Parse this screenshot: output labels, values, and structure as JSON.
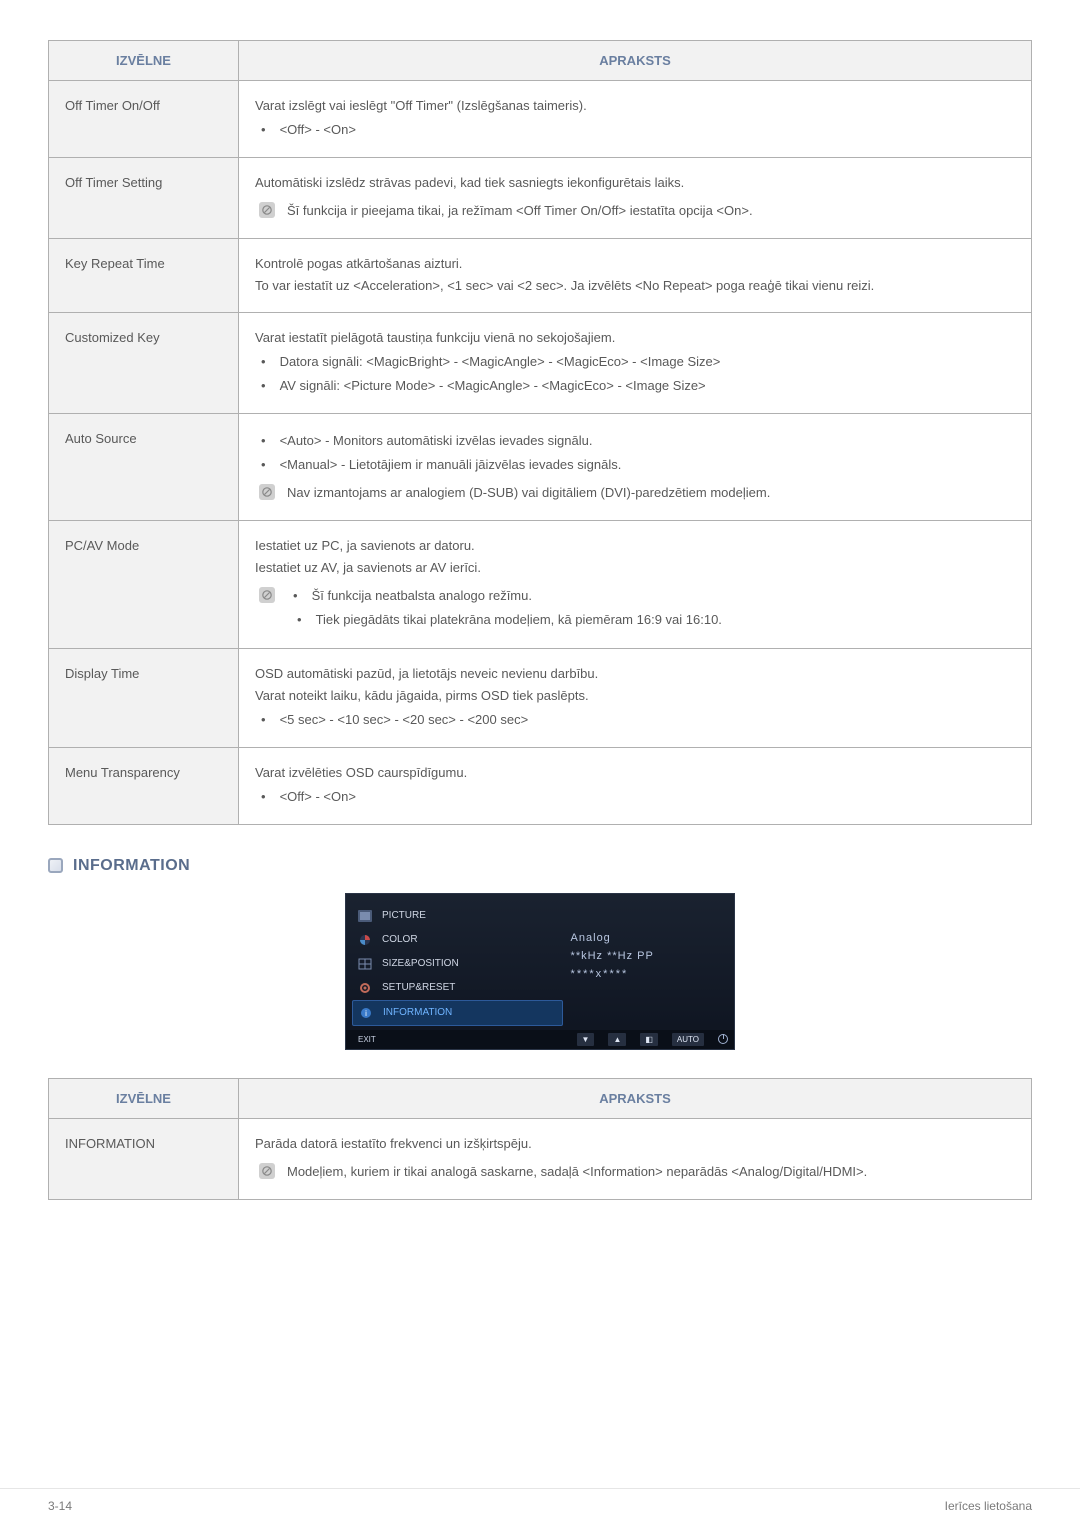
{
  "table1": {
    "headers": {
      "menu": "IZVĒLNE",
      "desc": "APRAKSTS"
    },
    "header_color": "#6a7fa0",
    "header_bg": "#f2f2f2",
    "border_color": "#b0b0b0",
    "text_color": "#595959",
    "rows": [
      {
        "menu": "Off Timer On/Off",
        "desc_lines": [
          {
            "kind": "plain",
            "text": "Varat izslēgt vai ieslēgt \"Off Timer\" (Izslēgšanas taimeris)."
          },
          {
            "kind": "bullet",
            "text": "<Off> - <On>"
          }
        ]
      },
      {
        "menu": "Off Timer Setting",
        "desc_lines": [
          {
            "kind": "plain",
            "text": "Automātiski izslēdz strāvas padevi, kad tiek sasniegts iekonfigurētais laiks."
          },
          {
            "kind": "note",
            "text": "Šī funkcija ir pieejama tikai, ja režīmam <Off Timer On/Off> iestatīta opcija <On>."
          }
        ]
      },
      {
        "menu": "Key Repeat Time",
        "desc_lines": [
          {
            "kind": "plain",
            "text": "Kontrolē pogas atkārtošanas aizturi."
          },
          {
            "kind": "plain",
            "text": "To var iestatīt uz <Acceleration>, <1 sec> vai <2 sec>. Ja izvēlēts <No Repeat> poga reaģē tikai vienu reizi."
          }
        ]
      },
      {
        "menu": "Customized Key",
        "desc_lines": [
          {
            "kind": "plain",
            "text": "Varat iestatīt pielāgotā taustiņa funkciju vienā no sekojošajiem."
          },
          {
            "kind": "bullet",
            "text": "Datora signāli: <MagicBright> - <MagicAngle> - <MagicEco> - <Image Size>"
          },
          {
            "kind": "bullet",
            "text": "AV signāli: <Picture Mode> - <MagicAngle> - <MagicEco> - <Image Size>"
          }
        ]
      },
      {
        "menu": "Auto Source",
        "desc_lines": [
          {
            "kind": "bullet",
            "text": "<Auto> - Monitors automātiski izvēlas ievades signālu."
          },
          {
            "kind": "bullet",
            "text": "<Manual> - Lietotājiem ir manuāli jāizvēlas ievades signāls."
          },
          {
            "kind": "note",
            "text": "Nav izmantojams ar analogiem (D-SUB) vai digitāliem (DVI)-paredzētiem modeļiem."
          }
        ]
      },
      {
        "menu": "PC/AV Mode",
        "desc_lines": [
          {
            "kind": "plain",
            "text": "Iestatiet uz PC, ja savienots ar datoru."
          },
          {
            "kind": "plain",
            "text": "Iestatiet uz AV, ja savienots ar AV ierīci."
          },
          {
            "kind": "note_bullet",
            "text": "Šī funkcija neatbalsta analogo režīmu."
          },
          {
            "kind": "bullet_nested",
            "text": "Tiek piegādāts tikai platekrāna modeļiem, kā piemēram 16:9 vai 16:10."
          }
        ]
      },
      {
        "menu": "Display Time",
        "desc_lines": [
          {
            "kind": "plain",
            "text": "OSD automātiski pazūd, ja lietotājs neveic nevienu darbību."
          },
          {
            "kind": "plain",
            "text": "Varat noteikt laiku, kādu jāgaida, pirms OSD tiek paslēpts."
          },
          {
            "kind": "bullet",
            "text": "<5 sec> - <10 sec> - <20 sec> - <200 sec>"
          }
        ]
      },
      {
        "menu": "Menu Transparency",
        "desc_lines": [
          {
            "kind": "plain",
            "text": "Varat izvēlēties OSD caurspīdīgumu."
          },
          {
            "kind": "bullet",
            "text": "<Off> - <On>"
          }
        ]
      }
    ]
  },
  "section_title": "INFORMATION",
  "osd": {
    "bg_top": "#1a2230",
    "bg_bottom": "#0e1420",
    "sel_bg": "#14365f",
    "sel_border": "#2d5a9a",
    "sel_color": "#6fb4ff",
    "item_color": "#cfd6e4",
    "right_color": "#b8c6e0",
    "items": [
      {
        "label": "PICTURE",
        "icon": "picture"
      },
      {
        "label": "COLOR",
        "icon": "color"
      },
      {
        "label": "SIZE&POSITION",
        "icon": "size"
      },
      {
        "label": "SETUP&RESET",
        "icon": "gear"
      },
      {
        "label": "INFORMATION",
        "icon": "info",
        "selected": true
      }
    ],
    "right_lines": {
      "r1": "Analog",
      "r2": "**kHz **Hz PP",
      "r3": "****x****"
    },
    "bar": {
      "exit": "EXIT",
      "btns": [
        "▼",
        "▲",
        "◧"
      ],
      "auto": "AUTO"
    }
  },
  "table2": {
    "headers": {
      "menu": "IZVĒLNE",
      "desc": "APRAKSTS"
    },
    "rows": [
      {
        "menu": "INFORMATION",
        "desc_lines": [
          {
            "kind": "plain",
            "text": "Parāda datorā iestatīto frekvenci un izšķirtspēju."
          },
          {
            "kind": "note",
            "text": "Modeļiem, kuriem ir tikai analogā saskarne, sadaļā <Information> neparādās <Analog/Digital/HDMI>."
          }
        ]
      }
    ]
  },
  "footer": {
    "left": "3-14",
    "right": "Ierīces lietošana"
  }
}
